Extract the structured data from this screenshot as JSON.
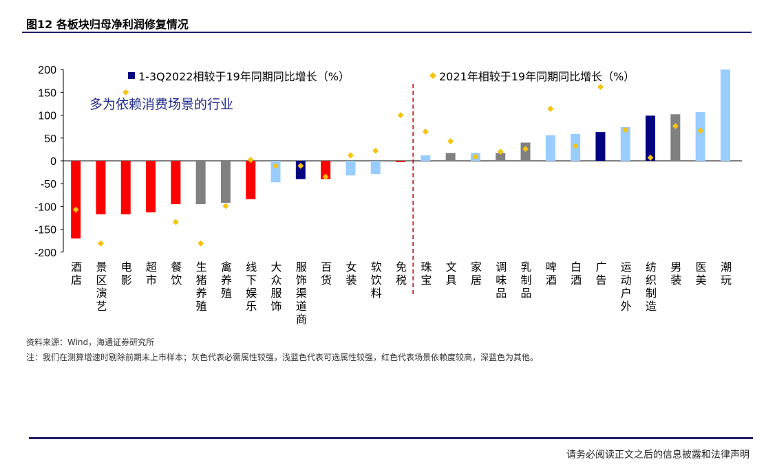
{
  "figure_title": "图12 各板块归母净利润修复情况",
  "source": "资料来源：Wind，海通证券研究所",
  "note": "注：我们在测算增速时剔除前期未上市样本；灰色代表必需属性较强，浅蓝色代表可选属性较强，红色代表场景依赖度较高，深蓝色为其他。",
  "footer": "请务必阅读正文之后的信息披露和法律声明",
  "colors": {
    "red": "#ff0000",
    "gray": "#808080",
    "light_blue": "#99ccff",
    "navy": "#000080",
    "diamond": "#f5c20f",
    "divider": "#c00000"
  },
  "chart_data": {
    "type": "bar",
    "annotation": "多为依赖消费场景的行业",
    "ylim": [
      -200,
      200
    ],
    "yticks": [
      -200,
      -150,
      -100,
      -50,
      0,
      50,
      100,
      150,
      200
    ],
    "legend_position": "top",
    "categories": [
      "酒店",
      "景区演艺",
      "电影",
      "超市",
      "餐饮",
      "生猪养殖",
      "禽养殖",
      "线下娱乐",
      "大众服饰",
      "服饰渠道商",
      "百货",
      "女装",
      "软饮料",
      "免税",
      "珠宝",
      "文具",
      "家居",
      "调味品",
      "乳制品",
      "啤酒",
      "白酒",
      "广告",
      "运动户外",
      "纺织制造",
      "男装",
      "医美",
      "潮玩"
    ],
    "bar_groups": [
      "red",
      "red",
      "red",
      "red",
      "red",
      "gray",
      "gray",
      "red",
      "light_blue",
      "navy",
      "red",
      "light_blue",
      "light_blue",
      "red",
      "light_blue",
      "gray",
      "light_blue",
      "gray",
      "gray",
      "light_blue",
      "light_blue",
      "navy",
      "light_blue",
      "navy",
      "gray",
      "light_blue",
      "light_blue"
    ],
    "divider_after_index": 13,
    "series": [
      {
        "name": "1-3Q2022相较于19年同期同比增长（%）",
        "type": "bar",
        "values": [
          -170,
          -117,
          -117,
          -113,
          -95,
          -95,
          -92,
          -84,
          -47,
          -40,
          -40,
          -32,
          -29,
          -3,
          12,
          17,
          17,
          17,
          40,
          56,
          59,
          63,
          74,
          99,
          102,
          107,
          200
        ]
      },
      {
        "name": "2021年相较于19年同期同比增长（%）",
        "type": "scatter",
        "values": [
          -107,
          -181,
          150,
          null,
          -134,
          -181,
          -99,
          2,
          -11,
          -11,
          -35,
          12,
          22,
          100,
          64,
          43,
          9,
          20,
          26,
          114,
          33,
          162,
          68,
          7,
          76,
          66,
          null
        ]
      }
    ]
  }
}
